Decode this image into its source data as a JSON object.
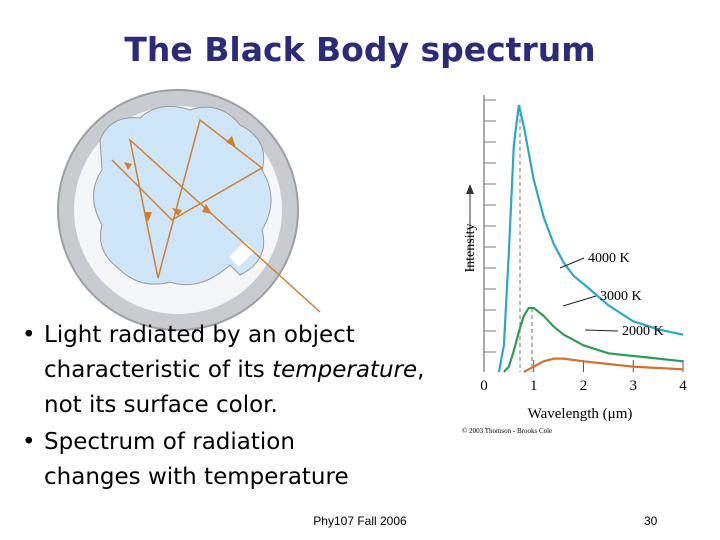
{
  "title": "The Black Body spectrum",
  "bullets": [
    [
      [
        "Light radiated by an object"
      ],
      [
        "characteristic of its ",
        "temperature",
        ","
      ],
      [
        "not its surface color."
      ]
    ],
    [
      [
        "Spectrum of radiation"
      ],
      [
        "changes with temperature"
      ]
    ]
  ],
  "footer": {
    "course": "Phy107 Fall 2006",
    "page": "30"
  },
  "chart_data": {
    "type": "line",
    "x_label": "Wavelength (μm)",
    "y_label": "Intensity",
    "credit": "© 2003 Thomson - Brooks Cole",
    "x": [
      0.3,
      0.4,
      0.5,
      0.6,
      0.7,
      0.8,
      0.9,
      1.0,
      1.2,
      1.4,
      1.6,
      1.8,
      2.0,
      2.5,
      3.0,
      3.5,
      4.0
    ],
    "series": [
      {
        "name": "4000 K",
        "color": "#2aa8c8",
        "values": [
          0,
          10,
          45,
          85,
          100,
          92,
          82,
          72,
          58,
          48,
          41,
          36,
          33,
          25,
          19,
          16,
          14
        ]
      },
      {
        "name": "3000 K",
        "color": "#2e9a5a",
        "values": [
          null,
          0,
          2,
          8,
          15,
          21,
          24,
          24,
          21,
          17,
          14,
          12,
          10,
          7,
          6,
          5,
          4
        ]
      },
      {
        "name": "2000 K",
        "color": "#d8702a",
        "values": [
          null,
          null,
          null,
          null,
          null,
          0,
          1,
          2,
          4,
          5,
          5,
          4.5,
          4,
          3,
          2,
          1.5,
          1
        ]
      }
    ],
    "xlim": [
      0,
      4
    ],
    "xticks": [
      0,
      1,
      2,
      3,
      4
    ],
    "ylim": [
      0,
      100
    ]
  }
}
